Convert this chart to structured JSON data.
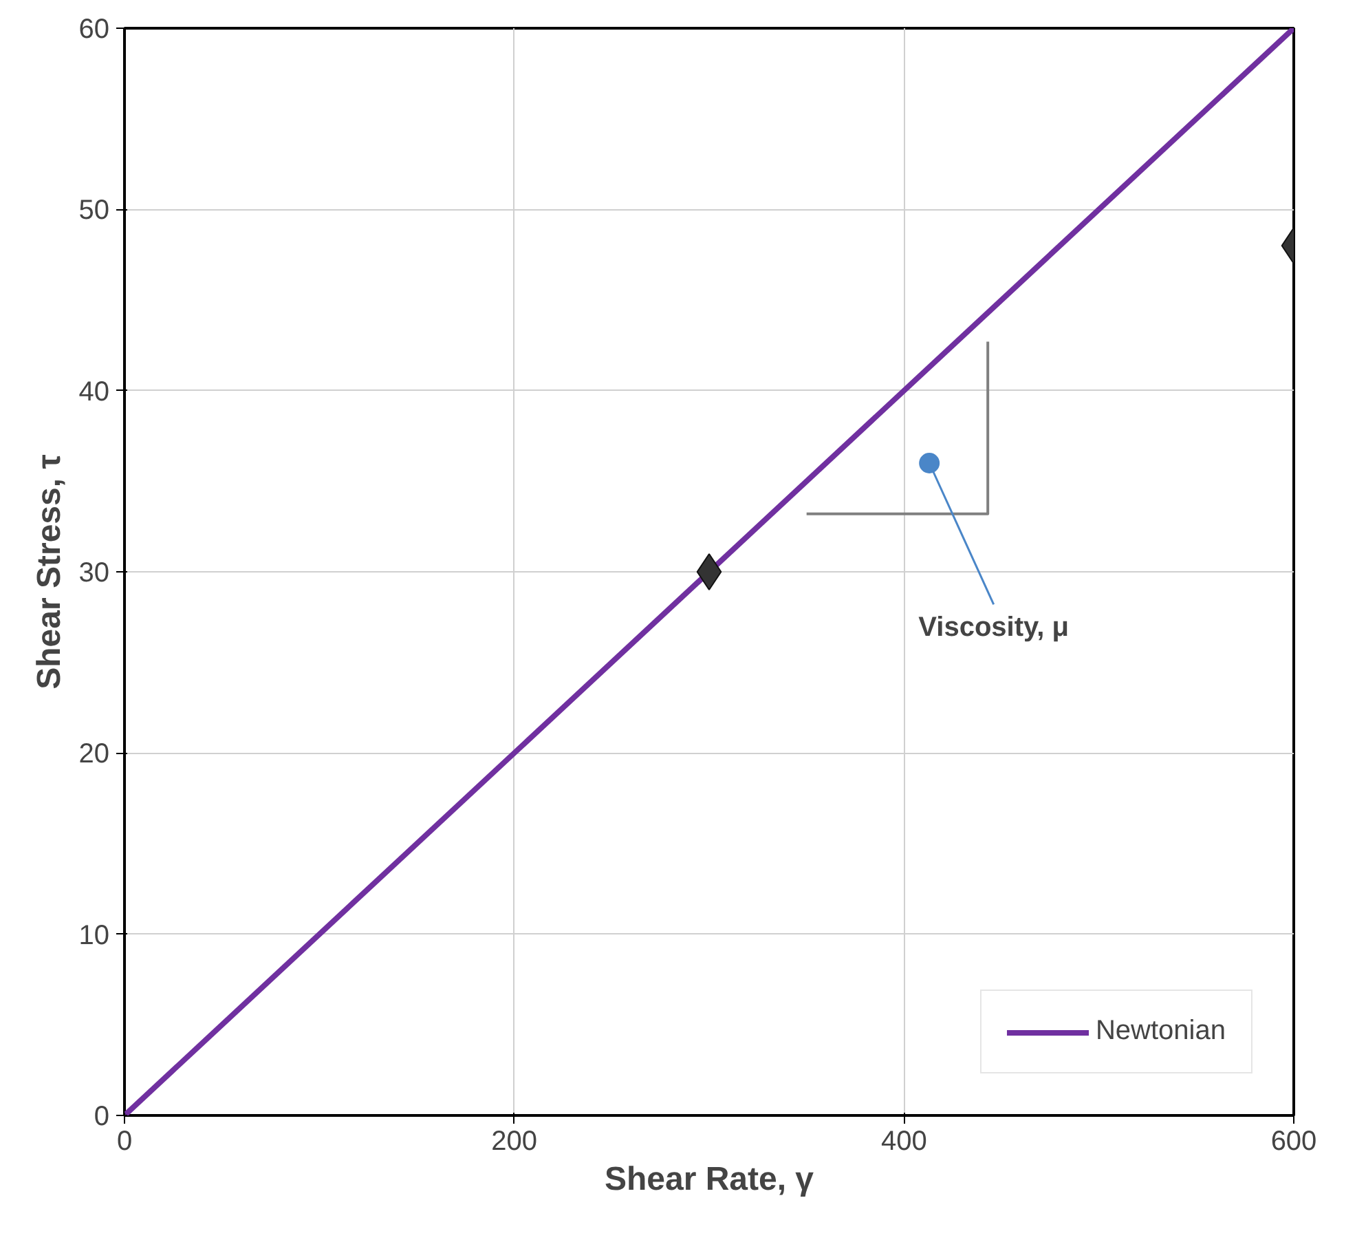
{
  "chart_data": {
    "type": "line",
    "xlabel": "Shear Rate, γ",
    "ylabel": "Shear Stress, τ",
    "xlim": [
      0,
      600
    ],
    "xticks": [
      0,
      200,
      400,
      600
    ],
    "ylim": [
      0,
      60
    ],
    "yticks": [
      0,
      10,
      20,
      30,
      40,
      50,
      60
    ],
    "grid": true,
    "legend": "bottom right",
    "series": [
      {
        "name": "Newtonian",
        "color": "#7030a0",
        "marker": "none",
        "x": [
          0,
          600
        ],
        "values": [
          0,
          60
        ]
      },
      {
        "type": "scatter",
        "color": "#333333",
        "marker": "diamond",
        "x": [
          300,
          600
        ],
        "values": [
          30,
          48
        ]
      },
      {
        "type": "line",
        "color": "#808080",
        "marker": "none",
        "x": [
          350,
          443,
          443
        ],
        "values": [
          33.2,
          33.2,
          42.7
        ]
      }
    ],
    "annotations": [
      {
        "text": "Viscosity, μ",
        "x": 413,
        "y": 36
      }
    ]
  }
}
